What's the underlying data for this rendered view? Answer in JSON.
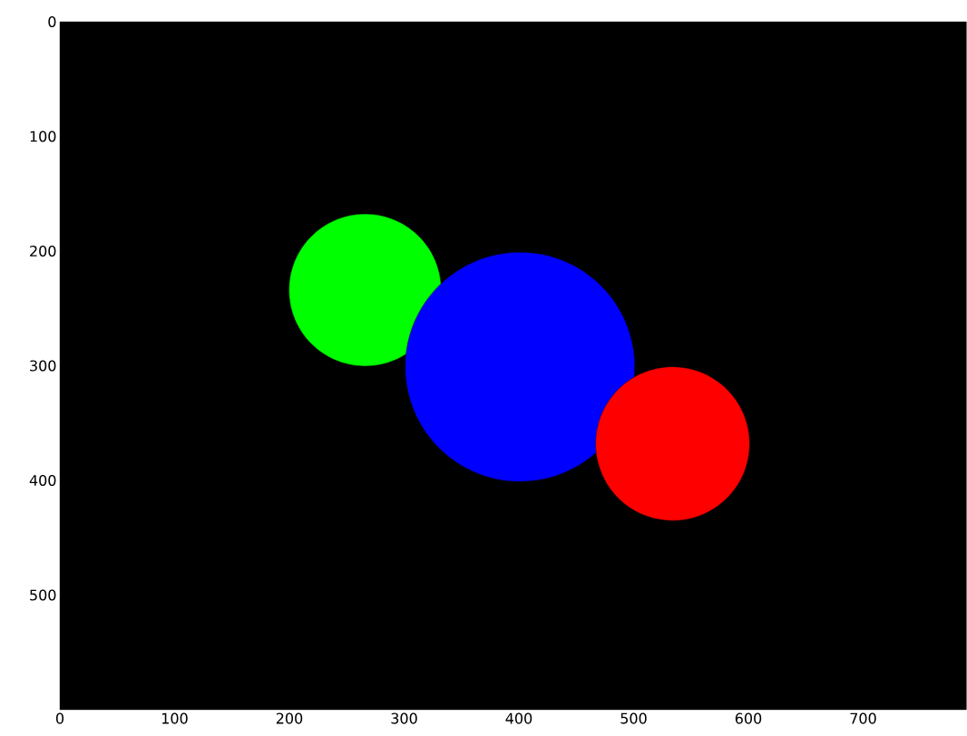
{
  "chart_data": {
    "type": "bubble",
    "x": [
      266,
      401,
      534
    ],
    "values": [
      234,
      301,
      368
    ],
    "sizes": [
      0.44,
      1,
      0.45
    ],
    "colors": [
      "#00ff00",
      "#0000ff",
      "#ff0000"
    ],
    "xlim": [
      0,
      790
    ],
    "ylim": [
      600,
      0
    ],
    "xticks": [
      0,
      100,
      200,
      300,
      400,
      500,
      600,
      700
    ],
    "yticks": [
      0,
      100,
      200,
      300,
      400,
      500
    ]
  }
}
